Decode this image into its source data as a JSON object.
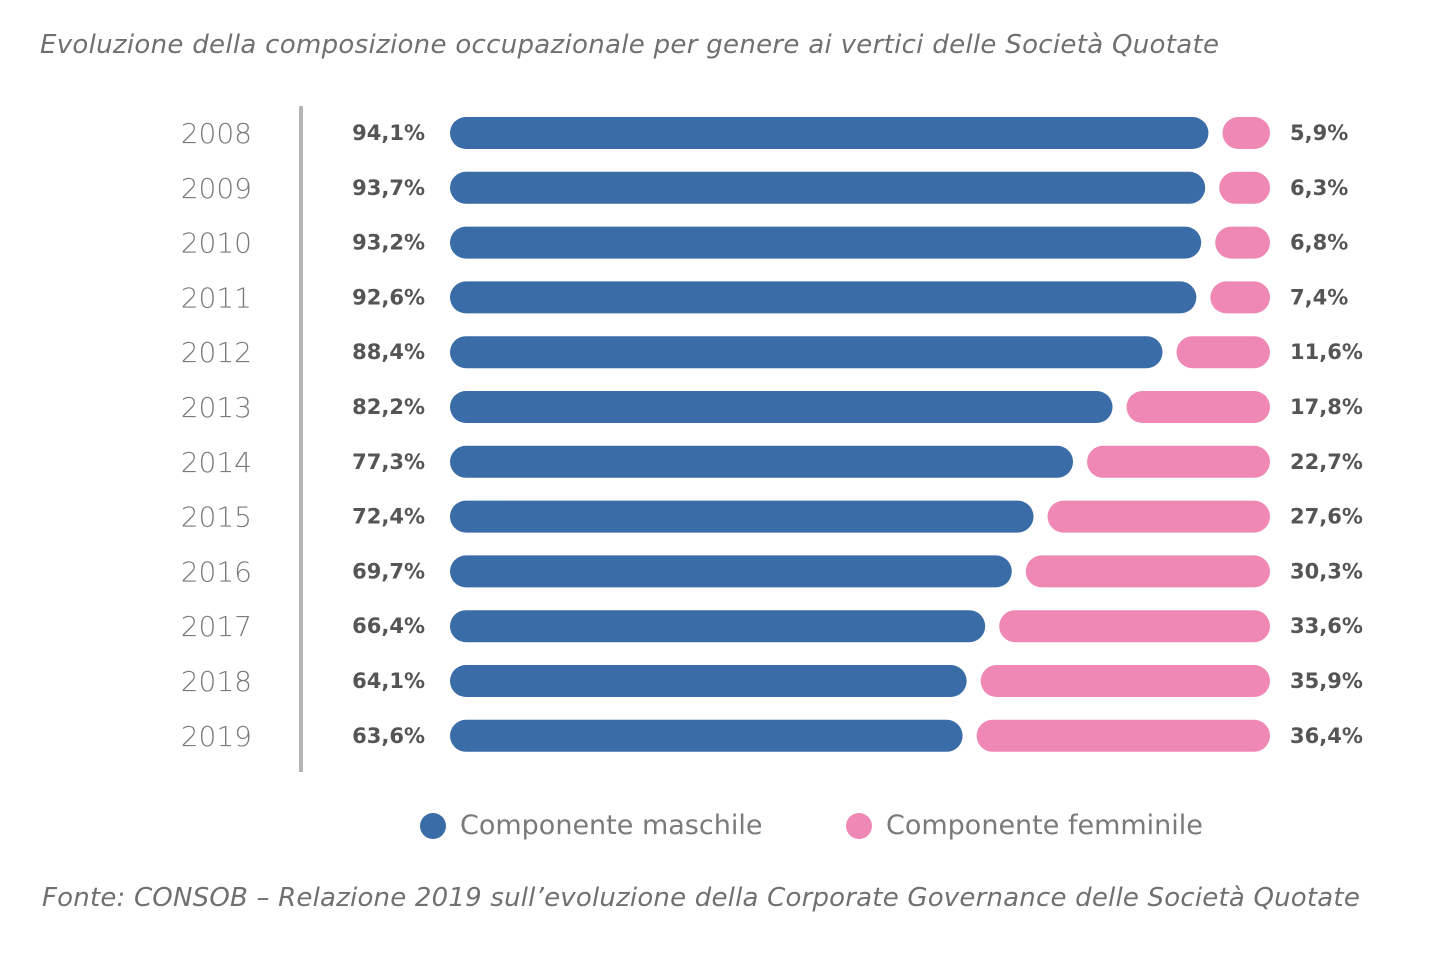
{
  "title": "Evoluzione della composizione occupazionale per genere ai vertici delle Società Quotate",
  "source": "Fonte: CONSOB – Relazione 2019 sull’evoluzione della Corporate Governance delle Società Quotate",
  "colors": {
    "male": "#3a6ca7",
    "female": "#ef88b5",
    "axis": "#b5b5b5"
  },
  "legend": {
    "male": "Componente maschile",
    "female": "Componente femminile"
  },
  "chart_data": {
    "type": "bar",
    "orientation": "horizontal",
    "stacked": true,
    "title": "Evoluzione della composizione occupazionale per genere ai vertici delle Società Quotate",
    "categories": [
      "2008",
      "2009",
      "2010",
      "2011",
      "2012",
      "2013",
      "2014",
      "2015",
      "2016",
      "2017",
      "2018",
      "2019"
    ],
    "series": [
      {
        "name": "Componente maschile",
        "values": [
          94.1,
          93.7,
          93.2,
          92.6,
          88.4,
          82.2,
          77.3,
          72.4,
          69.7,
          66.4,
          64.1,
          63.6
        ],
        "labels": [
          "94,1%",
          "93,7%",
          "93,2%",
          "92,6%",
          "88,4%",
          "82,2%",
          "77,3%",
          "72,4%",
          "69,7%",
          "66,4%",
          "64,1%",
          "63,6%"
        ]
      },
      {
        "name": "Componente femminile",
        "values": [
          5.9,
          6.3,
          6.8,
          7.4,
          11.6,
          17.8,
          22.7,
          27.6,
          30.3,
          33.6,
          35.9,
          36.4
        ],
        "labels": [
          "5,9%",
          "6,3%",
          "6,8%",
          "7,4%",
          "11,6%",
          "17,8%",
          "22,7%",
          "27,6%",
          "30,3%",
          "33,6%",
          "35,9%",
          "36,4%"
        ]
      }
    ],
    "xlim": [
      0,
      100
    ],
    "grid": false,
    "legend_position": "bottom"
  }
}
